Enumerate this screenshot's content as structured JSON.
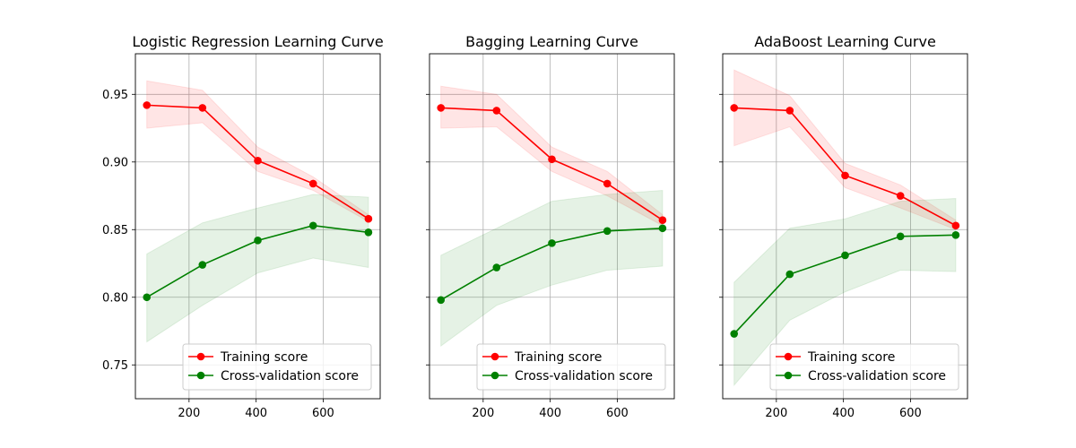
{
  "chart_data": [
    {
      "type": "line",
      "title": "Logistic Regression Learning Curve",
      "xlabel": "",
      "ylabel": "",
      "xlim": [
        40,
        770
      ],
      "ylim": [
        0.725,
        0.98
      ],
      "x_ticks": [
        200,
        400,
        600
      ],
      "y_ticks": [
        0.75,
        0.8,
        0.85,
        0.9,
        0.95
      ],
      "y_tick_labels": [
        "0.75",
        "0.80",
        "0.85",
        "0.90",
        "0.95"
      ],
      "grid": true,
      "legend_position": "lower-right",
      "x": [
        74,
        240,
        405,
        570,
        735
      ],
      "series": [
        {
          "name": "Training score",
          "color": "#ff0000",
          "values": [
            0.942,
            0.94,
            0.901,
            0.884,
            0.858
          ],
          "lower": [
            0.925,
            0.929,
            0.893,
            0.879,
            0.856
          ],
          "upper": [
            0.96,
            0.953,
            0.911,
            0.889,
            0.861
          ]
        },
        {
          "name": "Cross-validation score",
          "color": "#008000",
          "values": [
            0.8,
            0.824,
            0.842,
            0.853,
            0.848
          ],
          "lower": [
            0.767,
            0.794,
            0.818,
            0.829,
            0.822
          ],
          "upper": [
            0.832,
            0.855,
            0.866,
            0.876,
            0.874
          ]
        }
      ]
    },
    {
      "type": "line",
      "title": "Bagging Learning Curve",
      "xlabel": "",
      "ylabel": "",
      "xlim": [
        40,
        770
      ],
      "ylim": [
        0.725,
        0.98
      ],
      "x_ticks": [
        200,
        400,
        600
      ],
      "y_ticks": [
        0.75,
        0.8,
        0.85,
        0.9,
        0.95
      ],
      "y_tick_labels": [],
      "grid": true,
      "legend_position": "lower-right",
      "x": [
        74,
        240,
        405,
        570,
        735
      ],
      "series": [
        {
          "name": "Training score",
          "color": "#ff0000",
          "values": [
            0.94,
            0.938,
            0.902,
            0.884,
            0.857
          ],
          "lower": [
            0.925,
            0.926,
            0.893,
            0.875,
            0.853
          ],
          "upper": [
            0.956,
            0.95,
            0.911,
            0.893,
            0.861
          ]
        },
        {
          "name": "Cross-validation score",
          "color": "#008000",
          "values": [
            0.798,
            0.822,
            0.84,
            0.849,
            0.851
          ],
          "lower": [
            0.764,
            0.794,
            0.809,
            0.82,
            0.823
          ],
          "upper": [
            0.831,
            0.851,
            0.871,
            0.876,
            0.879
          ]
        }
      ]
    },
    {
      "type": "line",
      "title": "AdaBoost Learning Curve",
      "xlabel": "",
      "ylabel": "",
      "xlim": [
        40,
        770
      ],
      "ylim": [
        0.725,
        0.98
      ],
      "x_ticks": [
        200,
        400,
        600
      ],
      "y_ticks": [
        0.75,
        0.8,
        0.85,
        0.9,
        0.95
      ],
      "y_tick_labels": [],
      "grid": true,
      "legend_position": "lower-right",
      "x": [
        74,
        240,
        405,
        570,
        735
      ],
      "series": [
        {
          "name": "Training score",
          "color": "#ff0000",
          "values": [
            0.94,
            0.938,
            0.89,
            0.875,
            0.853
          ],
          "lower": [
            0.912,
            0.926,
            0.881,
            0.866,
            0.85
          ],
          "upper": [
            0.968,
            0.949,
            0.899,
            0.883,
            0.857
          ]
        },
        {
          "name": "Cross-validation score",
          "color": "#008000",
          "values": [
            0.773,
            0.817,
            0.831,
            0.845,
            0.846
          ],
          "lower": [
            0.735,
            0.783,
            0.804,
            0.82,
            0.819
          ],
          "upper": [
            0.811,
            0.851,
            0.858,
            0.871,
            0.873
          ]
        }
      ]
    }
  ]
}
